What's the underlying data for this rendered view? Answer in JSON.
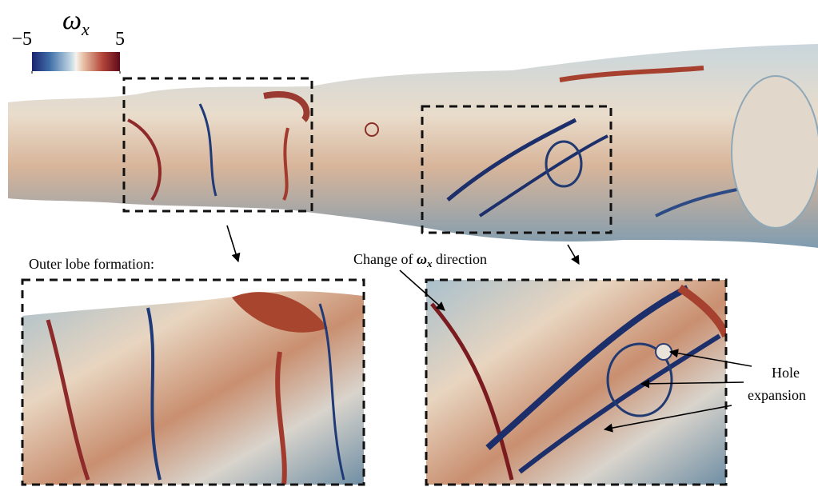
{
  "colorbar": {
    "title": "ω",
    "title_subscript": "x",
    "lim": [
      -5,
      5
    ],
    "ticks": [
      -5,
      5
    ]
  },
  "annotations": {
    "outer_lobe": "Outer lobe formation:",
    "change": {
      "before": "Change of",
      "symbol": "ω",
      "subscript": "x",
      "after": "direction"
    },
    "hole": [
      "Hole",
      "expansion"
    ]
  }
}
